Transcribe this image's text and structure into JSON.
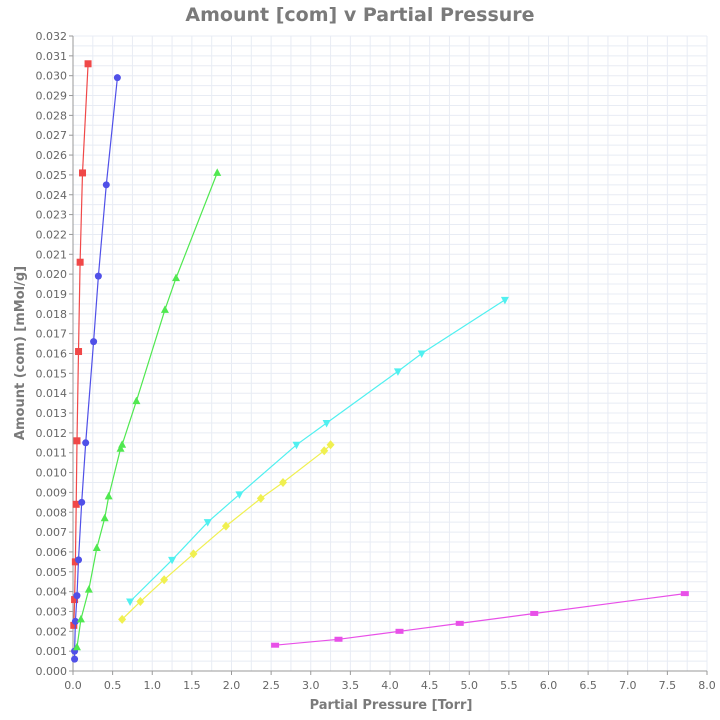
{
  "chart_data": {
    "type": "scatter",
    "title": "Amount [com] v Partial Pressure",
    "xlabel": "Partial Pressure [Torr]",
    "ylabel": "Amount (com) [mMol/g]",
    "xlim": [
      0.0,
      8.0
    ],
    "ylim": [
      0.0,
      0.032
    ],
    "x_ticks": [
      "0.0",
      "0.5",
      "1.0",
      "1.5",
      "2.0",
      "2.5",
      "3.0",
      "3.5",
      "4.0",
      "4.5",
      "5.0",
      "5.5",
      "6.0",
      "6.5",
      "7.0",
      "7.5",
      "8.0"
    ],
    "y_ticks": [
      "0.000",
      "0.001",
      "0.002",
      "0.003",
      "0.004",
      "0.005",
      "0.006",
      "0.007",
      "0.008",
      "0.009",
      "0.010",
      "0.011",
      "0.012",
      "0.013",
      "0.014",
      "0.015",
      "0.016",
      "0.017",
      "0.018",
      "0.019",
      "0.020",
      "0.021",
      "0.022",
      "0.023",
      "0.024",
      "0.025",
      "0.026",
      "0.027",
      "0.028",
      "0.029",
      "0.030",
      "0.031",
      "0.032"
    ],
    "grid": true,
    "legend": "none",
    "series": [
      {
        "color": "#f04848",
        "marker": "square",
        "x": [
          0.01,
          0.02,
          0.03,
          0.04,
          0.05,
          0.07,
          0.09,
          0.12,
          0.19
        ],
        "y": [
          0.0023,
          0.0036,
          0.0055,
          0.0084,
          0.0116,
          0.0161,
          0.0206,
          0.0251,
          0.0306
        ]
      },
      {
        "color": "#5050e8",
        "marker": "circle",
        "x": [
          0.02,
          0.02,
          0.03,
          0.05,
          0.07,
          0.11,
          0.16,
          0.26,
          0.32,
          0.42,
          0.56
        ],
        "y": [
          0.0006,
          0.001,
          0.0025,
          0.0038,
          0.0056,
          0.0085,
          0.0115,
          0.0166,
          0.0199,
          0.0245,
          0.0299
        ]
      },
      {
        "color": "#50e850",
        "marker": "triangle-up",
        "x": [
          0.05,
          0.1,
          0.2,
          0.3,
          0.4,
          0.45,
          0.6,
          0.62,
          0.8,
          1.16,
          1.3,
          1.82
        ],
        "y": [
          0.0012,
          0.0026,
          0.0041,
          0.0062,
          0.0077,
          0.0088,
          0.0112,
          0.0114,
          0.0136,
          0.0182,
          0.0198,
          0.0251
        ]
      },
      {
        "color": "#50f0f0",
        "marker": "triangle-down",
        "x": [
          0.72,
          1.25,
          1.7,
          2.1,
          2.82,
          3.2,
          4.1,
          4.4,
          5.45
        ],
        "y": [
          0.0035,
          0.0056,
          0.0075,
          0.0089,
          0.0114,
          0.0125,
          0.0151,
          0.016,
          0.0187
        ]
      },
      {
        "color": "#f0f050",
        "marker": "diamond",
        "x": [
          0.62,
          0.85,
          1.15,
          1.52,
          1.93,
          2.37,
          2.65,
          3.17,
          3.25
        ],
        "y": [
          0.0026,
          0.0035,
          0.0046,
          0.0059,
          0.0073,
          0.0087,
          0.0095,
          0.0111,
          0.0114
        ]
      },
      {
        "color": "#e850e8",
        "marker": "rect",
        "x": [
          2.55,
          3.35,
          4.12,
          4.88,
          5.82,
          7.72
        ],
        "y": [
          0.0013,
          0.0016,
          0.002,
          0.0024,
          0.0029,
          0.0039
        ]
      }
    ]
  }
}
